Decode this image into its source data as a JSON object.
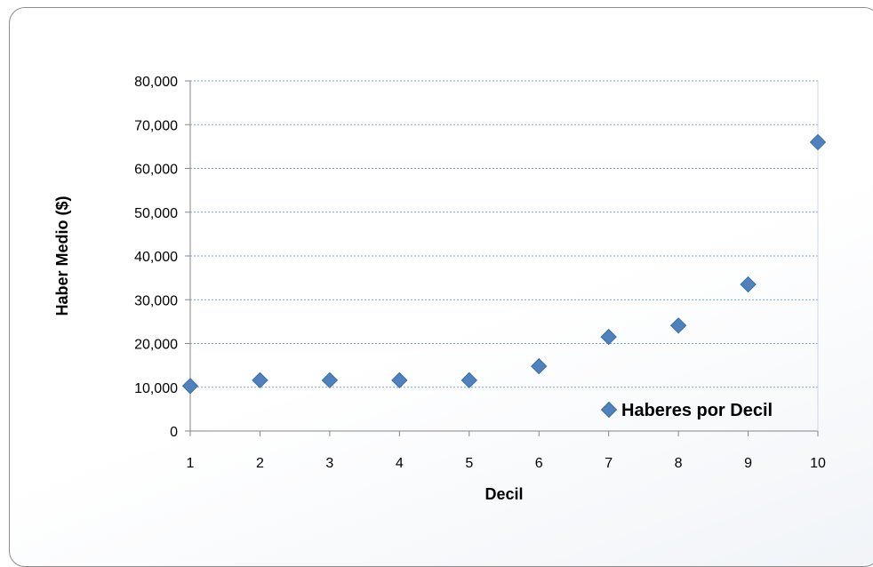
{
  "chart_data": {
    "type": "scatter",
    "xlabel": "Decil",
    "ylabel": "Haber Medio ($)",
    "xlim": [
      1,
      10
    ],
    "ylim": [
      0,
      80000
    ],
    "x_ticks": [
      "1",
      "2",
      "3",
      "4",
      "5",
      "6",
      "7",
      "8",
      "9",
      "10"
    ],
    "y_ticks": [
      "0",
      "10,000",
      "20,000",
      "30,000",
      "40,000",
      "50,000",
      "60,000",
      "70,000",
      "80,000"
    ],
    "grid": true,
    "legend_position": "bottom-right",
    "series": [
      {
        "name": "Haberes por Decil",
        "color": "#4f81bd",
        "x": [
          1,
          2,
          3,
          4,
          5,
          6,
          7,
          8,
          9,
          10
        ],
        "y": [
          10300,
          11600,
          11600,
          11600,
          11600,
          14800,
          21500,
          24100,
          33500,
          66000
        ]
      }
    ]
  }
}
